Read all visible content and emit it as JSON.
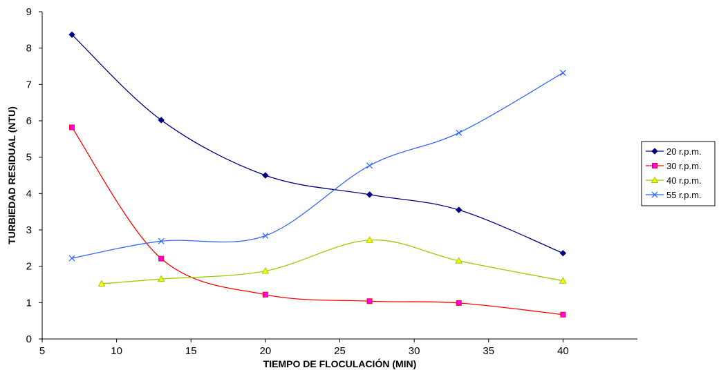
{
  "chart_data": {
    "type": "line",
    "title": "",
    "xlabel": "TIEMPO DE FLOCULACIÓN (MIN)",
    "ylabel": "TURBIEDAD RESIDUAL (NTU)",
    "xlim": [
      5,
      45
    ],
    "ylim": [
      0,
      9
    ],
    "xticks": [
      5,
      10,
      15,
      20,
      25,
      30,
      35,
      40
    ],
    "yticks": [
      0,
      1,
      2,
      3,
      4,
      5,
      6,
      7,
      8,
      9
    ],
    "grid": false,
    "legend_position": "right",
    "series": [
      {
        "name": "20  r.p.m.",
        "color": "#000080",
        "marker": "diamond",
        "x": [
          7,
          13,
          20,
          27,
          33,
          40
        ],
        "y": [
          8.37,
          6.02,
          4.5,
          3.97,
          3.55,
          2.36
        ]
      },
      {
        "name": "30 r.p.m.",
        "color": "#ff0000",
        "marker": "square",
        "marker_fill": "#ff00ff",
        "x": [
          7,
          13,
          20,
          27,
          33,
          40
        ],
        "y": [
          5.82,
          2.21,
          1.22,
          1.04,
          0.99,
          0.67
        ]
      },
      {
        "name": "40 r.p.m.",
        "color": "#99cc00",
        "marker": "triangle",
        "marker_fill": "#ffff00",
        "x": [
          9,
          13,
          20,
          27,
          33,
          40
        ],
        "y": [
          1.52,
          1.65,
          1.87,
          2.72,
          2.15,
          1.6
        ]
      },
      {
        "name": "55  r.p.m.",
        "color": "#3366ff",
        "marker": "x",
        "x": [
          7,
          13,
          20,
          27,
          33,
          40
        ],
        "y": [
          2.22,
          2.69,
          2.84,
          4.77,
          5.67,
          7.32
        ]
      }
    ]
  }
}
